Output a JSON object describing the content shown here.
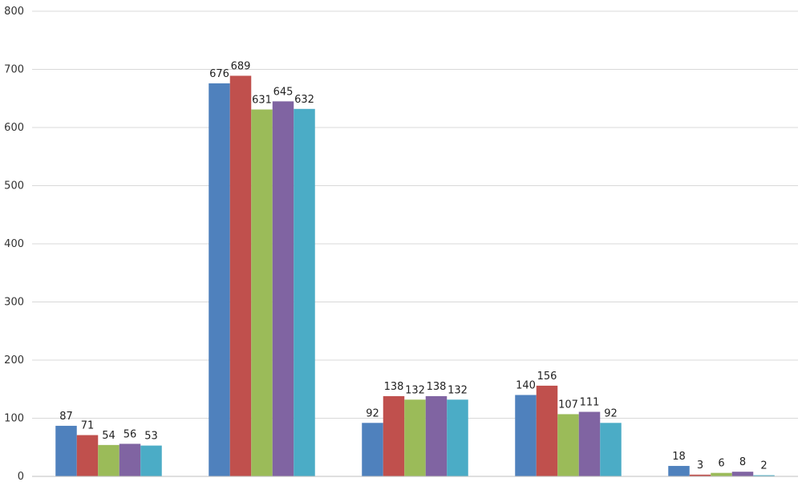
{
  "chart_data": {
    "type": "bar",
    "title": "",
    "xlabel": "",
    "ylabel": "",
    "categories": [
      "",
      "",
      "",
      "",
      ""
    ],
    "ylim": [
      0,
      800
    ],
    "yticks": [
      0,
      100,
      200,
      300,
      400,
      500,
      600,
      700,
      800
    ],
    "grid": true,
    "legend": "none",
    "series": [
      {
        "color": "#4f81bd",
        "values": [
          87,
          676,
          92,
          140,
          18
        ]
      },
      {
        "color": "#c0504d",
        "values": [
          71,
          689,
          138,
          156,
          3
        ]
      },
      {
        "color": "#9bbb59",
        "values": [
          54,
          631,
          132,
          107,
          6
        ]
      },
      {
        "color": "#8064a2",
        "values": [
          56,
          645,
          138,
          111,
          8
        ]
      },
      {
        "color": "#4bacc6",
        "values": [
          53,
          632,
          132,
          92,
          2
        ]
      }
    ]
  }
}
